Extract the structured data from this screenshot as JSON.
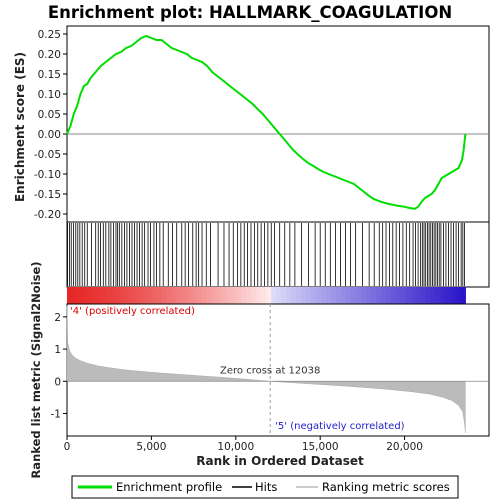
{
  "chart_data": {
    "type": "line",
    "title": "Enrichment plot: HALLMARK_COAGULATION",
    "top_panel": {
      "ylabel": "Enrichment score (ES)",
      "ylim": [
        -0.22,
        0.27
      ],
      "yticks": [
        -0.2,
        -0.15,
        -0.1,
        -0.05,
        0.0,
        0.05,
        0.1,
        0.15,
        0.2,
        0.25
      ],
      "ytick_labels": [
        "-0.20",
        "-0.15",
        "-0.10",
        "-0.05",
        "0.00",
        "0.05",
        "0.10",
        "0.15",
        "0.20",
        "0.25"
      ],
      "series": {
        "name": "Enrichment profile",
        "color": "#00dd00",
        "x": [
          0,
          200,
          400,
          600,
          800,
          1000,
          1200,
          1400,
          1600,
          1800,
          2000,
          2300,
          2600,
          2900,
          3200,
          3500,
          3800,
          4100,
          4400,
          4700,
          5000,
          5300,
          5600,
          5900,
          6200,
          6500,
          6800,
          7100,
          7400,
          7700,
          8000,
          8300,
          8600,
          8900,
          9200,
          9500,
          9800,
          10100,
          10400,
          10700,
          11000,
          11300,
          11600,
          11900,
          12200,
          12500,
          12800,
          13100,
          13400,
          13700,
          14000,
          14300,
          14600,
          14900,
          15200,
          15500,
          15800,
          16100,
          16400,
          16700,
          17000,
          17300,
          17600,
          17900,
          18200,
          18500,
          18800,
          19100,
          19400,
          19700,
          20000,
          20300,
          20600,
          20800,
          21000,
          21200,
          21400,
          21600,
          21800,
          22000,
          22200,
          22400,
          22600,
          22800,
          23000,
          23200,
          23400,
          23500,
          23550,
          23600
        ],
        "y": [
          0.0,
          0.02,
          0.05,
          0.07,
          0.1,
          0.12,
          0.125,
          0.14,
          0.15,
          0.16,
          0.17,
          0.18,
          0.19,
          0.2,
          0.205,
          0.215,
          0.22,
          0.23,
          0.24,
          0.245,
          0.24,
          0.235,
          0.235,
          0.225,
          0.215,
          0.21,
          0.205,
          0.2,
          0.19,
          0.185,
          0.18,
          0.17,
          0.155,
          0.145,
          0.135,
          0.125,
          0.115,
          0.105,
          0.095,
          0.085,
          0.075,
          0.062,
          0.05,
          0.035,
          0.02,
          0.005,
          -0.01,
          -0.025,
          -0.04,
          -0.052,
          -0.063,
          -0.073,
          -0.08,
          -0.088,
          -0.095,
          -0.1,
          -0.105,
          -0.11,
          -0.115,
          -0.12,
          -0.125,
          -0.135,
          -0.145,
          -0.155,
          -0.163,
          -0.168,
          -0.172,
          -0.175,
          -0.178,
          -0.18,
          -0.182,
          -0.185,
          -0.187,
          -0.182,
          -0.17,
          -0.16,
          -0.155,
          -0.15,
          -0.14,
          -0.125,
          -0.11,
          -0.105,
          -0.1,
          -0.095,
          -0.09,
          -0.085,
          -0.065,
          -0.04,
          -0.02,
          0.0
        ]
      }
    },
    "hits": {
      "name": "Hits",
      "positions": [
        30,
        150,
        250,
        380,
        520,
        640,
        760,
        900,
        1050,
        1200,
        1450,
        1700,
        1850,
        1980,
        2150,
        2300,
        2480,
        2600,
        2750,
        2900,
        3000,
        3100,
        3250,
        3400,
        3550,
        3700,
        3850,
        4000,
        4150,
        4300,
        4450,
        4600,
        4800,
        4950,
        5150,
        5300,
        5500,
        5700,
        6000,
        6250,
        6500,
        6800,
        7000,
        7200,
        7450,
        7650,
        7800,
        8000,
        8250,
        8500,
        8950,
        9300,
        9600,
        9850,
        10100,
        10300,
        10500,
        10700,
        10900,
        11100,
        11300,
        11500,
        11700,
        11900,
        12100,
        12300,
        12600,
        12900,
        13200,
        13500,
        13900,
        14300,
        14700,
        15000,
        15300,
        15600,
        15900,
        16200,
        16500,
        16800,
        17100,
        17500,
        17900,
        18200,
        18500,
        18700,
        18900,
        19100,
        19300,
        19500,
        19700,
        19900,
        20100,
        20300,
        20500,
        20650,
        20800,
        20950,
        21050,
        21150,
        21250,
        21350,
        21450,
        21550,
        21650,
        21750,
        21850,
        21950,
        22050,
        22150,
        22300,
        22450,
        22600,
        22750,
        22900,
        23050,
        23200,
        23350,
        23450,
        23550
      ]
    },
    "bottom_panel": {
      "ylabel": "Ranked list metric (Signal2Noise)",
      "xlabel": "Rank in Ordered Dataset",
      "ylim": [
        -1.7,
        2.4
      ],
      "yticks": [
        -1,
        0,
        1,
        2
      ],
      "ytick_labels": [
        "-1",
        "0",
        "1",
        "2"
      ],
      "metric_curve": {
        "name": "Ranking metric scores",
        "x": [
          0,
          50,
          150,
          300,
          500,
          800,
          1200,
          1800,
          2500,
          3500,
          5000,
          7000,
          9000,
          10500,
          12038,
          13500,
          15000,
          17000,
          19000,
          20500,
          21500,
          22300,
          22800,
          23200,
          23450,
          23550,
          23600
        ],
        "y": [
          2.35,
          1.2,
          0.95,
          0.82,
          0.72,
          0.64,
          0.56,
          0.48,
          0.42,
          0.35,
          0.28,
          0.2,
          0.13,
          0.07,
          0.0,
          -0.05,
          -0.1,
          -0.17,
          -0.25,
          -0.33,
          -0.4,
          -0.5,
          -0.6,
          -0.75,
          -0.95,
          -1.3,
          -1.6
        ]
      },
      "zero_cross_label": "Zero cross at 12038",
      "zero_cross": 12038,
      "positive_label": "'4' (positively correlated)",
      "negative_label": "'5' (negatively correlated)",
      "positive_color": "#dd0000",
      "negative_color": "#2222cc"
    },
    "x_axis": {
      "xlim": [
        0,
        25000
      ],
      "xticks": [
        0,
        5000,
        10000,
        15000,
        20000
      ],
      "xtick_labels": [
        "0",
        "5,000",
        "10,000",
        "15,000",
        "20,000"
      ],
      "n_genes": 23600
    },
    "legend": {
      "placement": "bottom",
      "items": [
        {
          "label": "Enrichment profile",
          "color": "#00dd00",
          "style": "line"
        },
        {
          "label": "Hits",
          "color": "#000000",
          "style": "line"
        },
        {
          "label": "Ranking metric scores",
          "color": "#bbbbbb",
          "style": "line"
        }
      ]
    },
    "grid": false
  }
}
